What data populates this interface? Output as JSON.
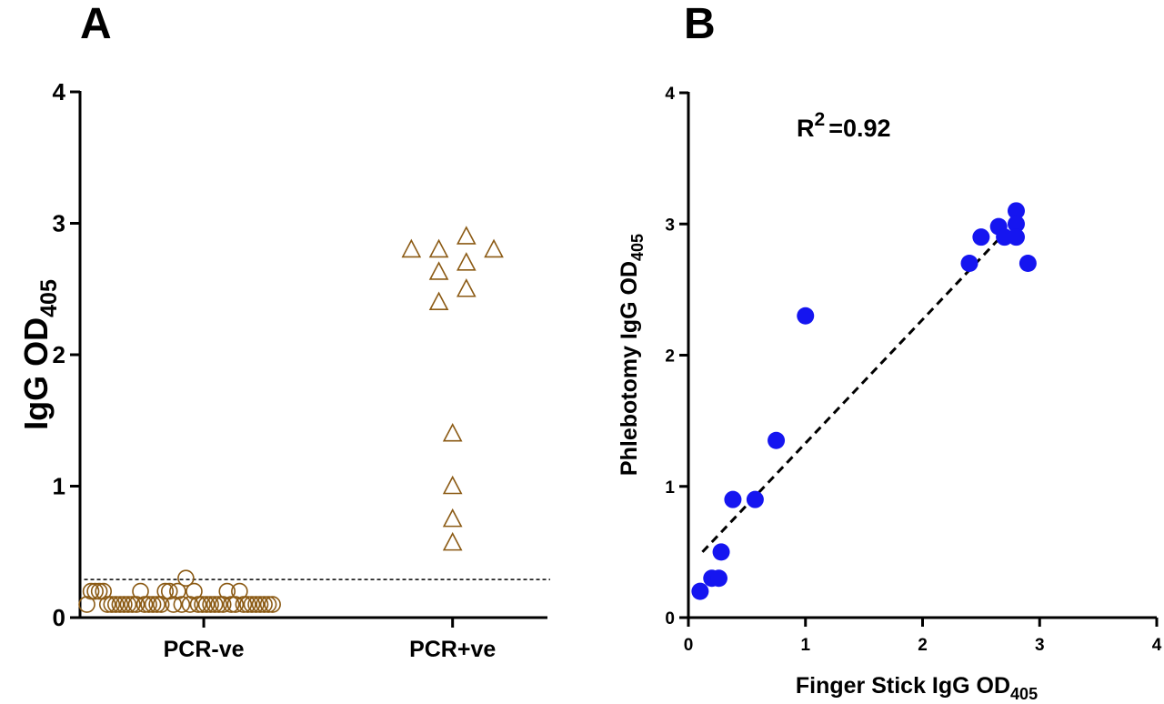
{
  "colors": {
    "panel_a_marker": "#8B5A14",
    "panel_b_marker": "#1515F0",
    "axis": "#000000"
  },
  "chart_data": [
    {
      "panel": "A",
      "type": "scatter",
      "subtype": "dot-strip",
      "categories": [
        "PCR-ve",
        "PCR+ve"
      ],
      "ylabel_main": "IgG OD",
      "ylabel_sub": "405",
      "ylim": [
        0,
        4
      ],
      "yticks": [
        "0",
        "1",
        "2",
        "3",
        "4"
      ],
      "cutoff_line": 0.29,
      "series": [
        {
          "category": "PCR-ve",
          "marker": "open-circle",
          "points": [
            {
              "x": 0.05,
              "y": 0.1
            },
            {
              "x": 0.08,
              "y": 0.2
            },
            {
              "x": 0.11,
              "y": 0.2
            },
            {
              "x": 0.14,
              "y": 0.2
            },
            {
              "x": 0.17,
              "y": 0.2
            },
            {
              "x": 0.2,
              "y": 0.1
            },
            {
              "x": 0.23,
              "y": 0.1
            },
            {
              "x": 0.26,
              "y": 0.1
            },
            {
              "x": 0.29,
              "y": 0.1
            },
            {
              "x": 0.32,
              "y": 0.1
            },
            {
              "x": 0.35,
              "y": 0.1
            },
            {
              "x": 0.38,
              "y": 0.1
            },
            {
              "x": 0.41,
              "y": 0.1
            },
            {
              "x": 0.44,
              "y": 0.2
            },
            {
              "x": 0.47,
              "y": 0.1
            },
            {
              "x": 0.5,
              "y": 0.1
            },
            {
              "x": 0.53,
              "y": 0.1
            },
            {
              "x": 0.56,
              "y": 0.1
            },
            {
              "x": 0.59,
              "y": 0.1
            },
            {
              "x": 0.62,
              "y": 0.2
            },
            {
              "x": 0.65,
              "y": 0.2
            },
            {
              "x": 0.68,
              "y": 0.1
            },
            {
              "x": 0.71,
              "y": 0.2
            },
            {
              "x": 0.74,
              "y": 0.1
            },
            {
              "x": 0.77,
              "y": 0.3
            },
            {
              "x": 0.8,
              "y": 0.1
            },
            {
              "x": 0.83,
              "y": 0.2
            },
            {
              "x": 0.86,
              "y": 0.1
            },
            {
              "x": 0.89,
              "y": 0.1
            },
            {
              "x": 0.92,
              "y": 0.1
            },
            {
              "x": 0.95,
              "y": 0.1
            },
            {
              "x": 0.98,
              "y": 0.1
            },
            {
              "x": 1.01,
              "y": 0.1
            },
            {
              "x": 1.04,
              "y": 0.1
            },
            {
              "x": 1.07,
              "y": 0.2
            },
            {
              "x": 1.1,
              "y": 0.1
            },
            {
              "x": 1.13,
              "y": 0.1
            },
            {
              "x": 1.16,
              "y": 0.2
            },
            {
              "x": 1.19,
              "y": 0.1
            },
            {
              "x": 1.22,
              "y": 0.1
            },
            {
              "x": 1.25,
              "y": 0.1
            },
            {
              "x": 1.28,
              "y": 0.1
            },
            {
              "x": 1.31,
              "y": 0.1
            },
            {
              "x": 1.34,
              "y": 0.1
            },
            {
              "x": 1.37,
              "y": 0.1
            },
            {
              "x": 1.4,
              "y": 0.1
            }
          ]
        },
        {
          "category": "PCR+ve",
          "marker": "open-triangle",
          "points": [
            {
              "x": 2.41,
              "y": 2.8
            },
            {
              "x": 2.61,
              "y": 2.8
            },
            {
              "x": 2.61,
              "y": 2.63
            },
            {
              "x": 2.61,
              "y": 2.4
            },
            {
              "x": 2.81,
              "y": 2.9
            },
            {
              "x": 2.81,
              "y": 2.7
            },
            {
              "x": 2.81,
              "y": 2.5
            },
            {
              "x": 3.01,
              "y": 2.8
            },
            {
              "x": 2.71,
              "y": 1.4
            },
            {
              "x": 2.71,
              "y": 1.0
            },
            {
              "x": 2.71,
              "y": 0.75
            },
            {
              "x": 2.71,
              "y": 0.57
            }
          ]
        }
      ]
    },
    {
      "panel": "B",
      "type": "scatter",
      "xlabel_main": "Finger Stick IgG OD",
      "xlabel_sub": "405",
      "ylabel_main": "Phlebotomy IgG OD",
      "ylabel_sub": "405",
      "xlim": [
        0,
        4
      ],
      "ylim": [
        0,
        4
      ],
      "xticks": [
        "0",
        "1",
        "2",
        "3",
        "4"
      ],
      "yticks": [
        "0",
        "1",
        "2",
        "3",
        "4"
      ],
      "annotation_main": "R",
      "annotation_sup": "2",
      "annotation_rest": "=0.92",
      "trendline": {
        "x": [
          0.12,
          2.72
        ],
        "y": [
          0.5,
          2.95
        ]
      },
      "points": [
        {
          "x": 0.1,
          "y": 0.2
        },
        {
          "x": 0.2,
          "y": 0.3
        },
        {
          "x": 0.26,
          "y": 0.3
        },
        {
          "x": 0.28,
          "y": 0.5
        },
        {
          "x": 0.38,
          "y": 0.9
        },
        {
          "x": 0.57,
          "y": 0.9
        },
        {
          "x": 0.75,
          "y": 1.35
        },
        {
          "x": 1.0,
          "y": 2.3
        },
        {
          "x": 2.4,
          "y": 2.7
        },
        {
          "x": 2.5,
          "y": 2.9
        },
        {
          "x": 2.65,
          "y": 2.98
        },
        {
          "x": 2.7,
          "y": 2.9
        },
        {
          "x": 2.8,
          "y": 3.1
        },
        {
          "x": 2.8,
          "y": 3.0
        },
        {
          "x": 2.8,
          "y": 2.9
        },
        {
          "x": 2.9,
          "y": 2.7
        }
      ]
    }
  ],
  "panels": {
    "a_letter": "A",
    "b_letter": "B"
  }
}
